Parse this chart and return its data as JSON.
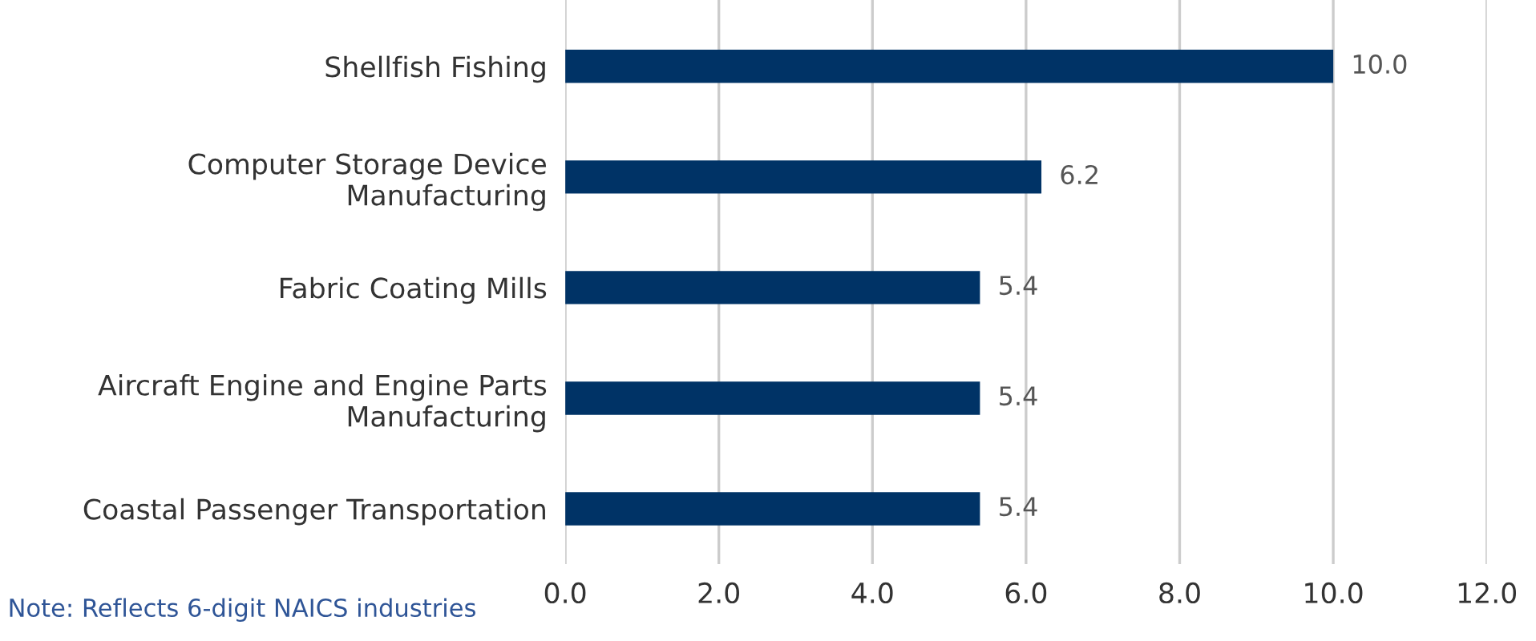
{
  "chart_data": {
    "type": "bar",
    "orientation": "horizontal",
    "categories": [
      "Shellfish Fishing",
      "Computer Storage Device\nManufacturing",
      "Fabric Coating Mills",
      "Aircraft Engine and Engine Parts\nManufacturing",
      "Coastal Passenger Transportation"
    ],
    "values": [
      10.0,
      6.2,
      5.4,
      5.4,
      5.4
    ],
    "value_labels": [
      "10.0",
      "6.2",
      "5.4",
      "5.4",
      "5.4"
    ],
    "color": "#003366",
    "xlim": [
      0,
      12
    ],
    "xticks": [
      {
        "value": 0,
        "label": "0.0"
      },
      {
        "value": 2,
        "label": "2.0"
      },
      {
        "value": 4,
        "label": "4.0"
      },
      {
        "value": 6,
        "label": "6.0"
      },
      {
        "value": 8,
        "label": "8.0"
      },
      {
        "value": 10,
        "label": "10.0"
      },
      {
        "value": 12,
        "label": "12.0"
      }
    ],
    "grid": "x",
    "annotations": [
      "Note: Reflects 6-digit NAICS industries"
    ]
  }
}
